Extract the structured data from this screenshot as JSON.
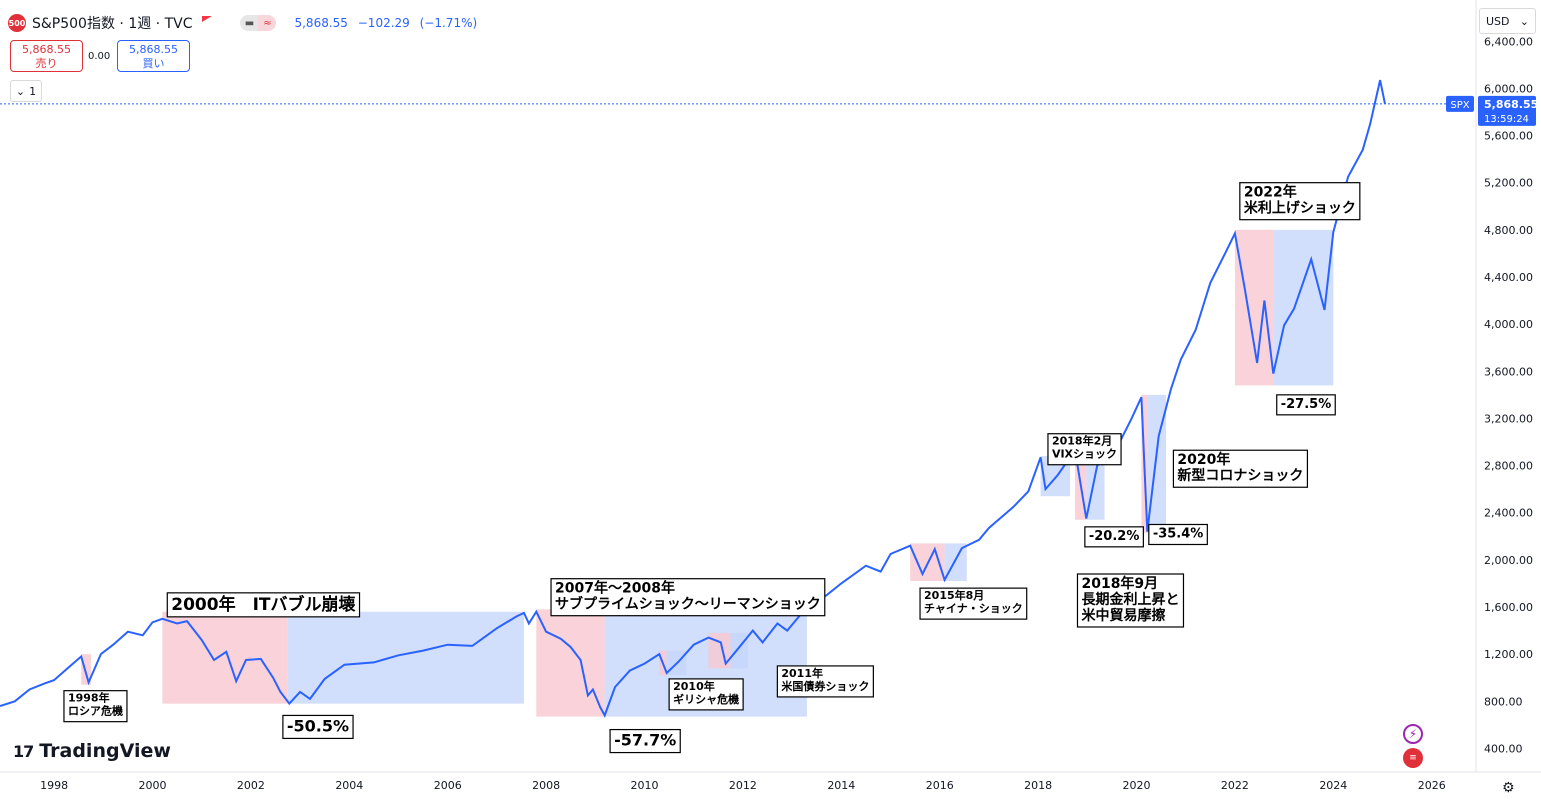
{
  "header": {
    "symbol_badge": "500",
    "title": "S&P500指数 · 1週 · TVC",
    "last": "5,868.55",
    "change": "−102.29",
    "change_pct": "(−1.71%)",
    "pill_left": "▬",
    "pill_right": "≈"
  },
  "trade": {
    "sell_price": "5,868.55",
    "sell_label": "売り",
    "spread": "0.00",
    "buy_price": "5,868.55",
    "buy_label": "買い"
  },
  "collapse": {
    "chevron": "⌄",
    "count": "1"
  },
  "currency": {
    "label": "USD",
    "chevron": "⌄"
  },
  "price_tag": {
    "symbol": "SPX",
    "price": "5,868.55",
    "countdown": "13:59:24"
  },
  "logo": {
    "mark": "17",
    "text": "TradingView"
  },
  "colors": {
    "line": "#2962ff",
    "drawdown": "#f7c8cf",
    "recovery": "#c6d6fb",
    "axis_text": "#131722",
    "tag_bg": "#2962ff"
  },
  "chart_data": {
    "type": "line",
    "title": "",
    "xlabel": "",
    "ylabel": "",
    "x_ticks": [
      1998,
      2000,
      2002,
      2004,
      2006,
      2008,
      2010,
      2012,
      2014,
      2016,
      2018,
      2020,
      2022,
      2024,
      2026
    ],
    "y_ticks": [
      400,
      800,
      1200,
      1600,
      2000,
      2400,
      2800,
      3200,
      3600,
      4000,
      4400,
      4800,
      5200,
      5600,
      6000,
      6400
    ],
    "y_tick_labels": [
      "400.00",
      "800.00",
      "1,200.00",
      "1,600.00",
      "2,000.00",
      "2,400.00",
      "2,800.00",
      "3,200.00",
      "3,600.00",
      "4,000.00",
      "4,400.00",
      "4,800.00",
      "5,200.00",
      "5,600.00",
      "6,000.00",
      "6,400.00"
    ],
    "xlim": [
      1996.9,
      2026.9
    ],
    "ylim": [
      200,
      6750
    ],
    "last_value": 5868.55,
    "series": [
      {
        "points": [
          [
            1996.9,
            760
          ],
          [
            1997.2,
            800
          ],
          [
            1997.5,
            900
          ],
          [
            1997.8,
            950
          ],
          [
            1998.0,
            980
          ],
          [
            1998.3,
            1090
          ],
          [
            1998.55,
            1180
          ],
          [
            1998.7,
            960
          ],
          [
            1998.95,
            1200
          ],
          [
            1999.2,
            1280
          ],
          [
            1999.5,
            1390
          ],
          [
            1999.8,
            1360
          ],
          [
            2000.0,
            1470
          ],
          [
            2000.2,
            1500
          ],
          [
            2000.5,
            1460
          ],
          [
            2000.7,
            1480
          ],
          [
            2001.0,
            1320
          ],
          [
            2001.25,
            1150
          ],
          [
            2001.5,
            1220
          ],
          [
            2001.7,
            970
          ],
          [
            2001.9,
            1150
          ],
          [
            2002.2,
            1160
          ],
          [
            2002.45,
            1000
          ],
          [
            2002.6,
            880
          ],
          [
            2002.78,
            780
          ],
          [
            2003.0,
            880
          ],
          [
            2003.2,
            820
          ],
          [
            2003.5,
            990
          ],
          [
            2003.9,
            1110
          ],
          [
            2004.5,
            1130
          ],
          [
            2005.0,
            1190
          ],
          [
            2005.5,
            1230
          ],
          [
            2006.0,
            1280
          ],
          [
            2006.5,
            1270
          ],
          [
            2007.0,
            1420
          ],
          [
            2007.4,
            1520
          ],
          [
            2007.55,
            1550
          ],
          [
            2007.65,
            1460
          ],
          [
            2007.8,
            1560
          ],
          [
            2008.0,
            1390
          ],
          [
            2008.3,
            1330
          ],
          [
            2008.5,
            1260
          ],
          [
            2008.7,
            1150
          ],
          [
            2008.85,
            850
          ],
          [
            2008.95,
            900
          ],
          [
            2009.1,
            750
          ],
          [
            2009.19,
            680
          ],
          [
            2009.4,
            920
          ],
          [
            2009.7,
            1060
          ],
          [
            2010.0,
            1120
          ],
          [
            2010.3,
            1200
          ],
          [
            2010.45,
            1040
          ],
          [
            2010.7,
            1140
          ],
          [
            2011.0,
            1280
          ],
          [
            2011.3,
            1340
          ],
          [
            2011.55,
            1300
          ],
          [
            2011.65,
            1120
          ],
          [
            2011.85,
            1220
          ],
          [
            2012.2,
            1400
          ],
          [
            2012.4,
            1300
          ],
          [
            2012.7,
            1460
          ],
          [
            2012.9,
            1400
          ],
          [
            2013.3,
            1600
          ],
          [
            2013.7,
            1700
          ],
          [
            2014.0,
            1800
          ],
          [
            2014.5,
            1950
          ],
          [
            2014.8,
            1900
          ],
          [
            2015.0,
            2050
          ],
          [
            2015.4,
            2120
          ],
          [
            2015.65,
            1880
          ],
          [
            2015.9,
            2090
          ],
          [
            2016.1,
            1830
          ],
          [
            2016.45,
            2100
          ],
          [
            2016.8,
            2170
          ],
          [
            2017.0,
            2270
          ],
          [
            2017.5,
            2450
          ],
          [
            2017.8,
            2580
          ],
          [
            2018.05,
            2870
          ],
          [
            2018.15,
            2600
          ],
          [
            2018.4,
            2720
          ],
          [
            2018.75,
            2930
          ],
          [
            2018.98,
            2350
          ],
          [
            2019.2,
            2800
          ],
          [
            2019.6,
            2950
          ],
          [
            2019.9,
            3200
          ],
          [
            2020.1,
            3380
          ],
          [
            2020.22,
            2240
          ],
          [
            2020.45,
            3050
          ],
          [
            2020.7,
            3450
          ],
          [
            2020.9,
            3700
          ],
          [
            2021.2,
            3950
          ],
          [
            2021.5,
            4350
          ],
          [
            2021.8,
            4600
          ],
          [
            2022.0,
            4770
          ],
          [
            2022.2,
            4300
          ],
          [
            2022.45,
            3670
          ],
          [
            2022.6,
            4200
          ],
          [
            2022.78,
            3580
          ],
          [
            2023.0,
            3990
          ],
          [
            2023.2,
            4130
          ],
          [
            2023.55,
            4550
          ],
          [
            2023.82,
            4120
          ],
          [
            2024.0,
            4780
          ],
          [
            2024.3,
            5250
          ],
          [
            2024.6,
            5480
          ],
          [
            2024.75,
            5700
          ],
          [
            2024.95,
            6070
          ],
          [
            2025.05,
            5868.55
          ]
        ]
      }
    ],
    "zones": [
      {
        "kind": "drawdown",
        "x0": 1998.55,
        "x1": 1998.75,
        "y_low": 940,
        "y_high": 1200
      },
      {
        "kind": "drawdown",
        "x0": 2000.2,
        "x1": 2002.75,
        "y_low": 780,
        "y_high": 1560
      },
      {
        "kind": "recovery",
        "x0": 2002.75,
        "x1": 2007.55,
        "y_low": 780,
        "y_high": 1560
      },
      {
        "kind": "drawdown",
        "x0": 2007.8,
        "x1": 2009.19,
        "y_low": 670,
        "y_high": 1580
      },
      {
        "kind": "recovery",
        "x0": 2009.19,
        "x1": 2013.3,
        "y_low": 670,
        "y_high": 1580
      },
      {
        "kind": "drawdown",
        "x0": 2010.3,
        "x1": 2010.45,
        "y_low": 1020,
        "y_high": 1230
      },
      {
        "kind": "recovery",
        "x0": 2010.45,
        "x1": 2010.85,
        "y_low": 1020,
        "y_high": 1230
      },
      {
        "kind": "drawdown",
        "x0": 2011.3,
        "x1": 2011.75,
        "y_low": 1080,
        "y_high": 1380
      },
      {
        "kind": "recovery",
        "x0": 2011.75,
        "x1": 2012.1,
        "y_low": 1080,
        "y_high": 1380
      },
      {
        "kind": "drawdown",
        "x0": 2015.4,
        "x1": 2016.1,
        "y_low": 1820,
        "y_high": 2140
      },
      {
        "kind": "recovery",
        "x0": 2016.1,
        "x1": 2016.55,
        "y_low": 1820,
        "y_high": 2140
      },
      {
        "kind": "recovery",
        "x0": 2018.05,
        "x1": 2018.65,
        "y_low": 2540,
        "y_high": 2880
      },
      {
        "kind": "drawdown",
        "x0": 2018.75,
        "x1": 2018.98,
        "y_low": 2340,
        "y_high": 2940
      },
      {
        "kind": "recovery",
        "x0": 2018.98,
        "x1": 2019.35,
        "y_low": 2340,
        "y_high": 2940
      },
      {
        "kind": "drawdown",
        "x0": 2020.1,
        "x1": 2020.22,
        "y_low": 2230,
        "y_high": 3400
      },
      {
        "kind": "recovery",
        "x0": 2020.22,
        "x1": 2020.6,
        "y_low": 2230,
        "y_high": 3400
      },
      {
        "kind": "drawdown",
        "x0": 2022.0,
        "x1": 2022.78,
        "y_low": 3480,
        "y_high": 4800
      },
      {
        "kind": "recovery",
        "x0": 2022.78,
        "x1": 2024.0,
        "y_low": 3480,
        "y_high": 4800
      }
    ],
    "annotations": [
      {
        "lines": [
          "1998年",
          "ロシア危機"
        ],
        "x": 1998.2,
        "y": 890,
        "size": 11
      },
      {
        "lines": [
          "2000年　ITバブル崩壊"
        ],
        "x": 2000.3,
        "y": 1720,
        "size": 17
      },
      {
        "lines": [
          "-50.5%"
        ],
        "x": 2002.65,
        "y": 680,
        "size": 16
      },
      {
        "lines": [
          "2007年～2008年",
          "サブプライムショック～リーマンショック"
        ],
        "x": 2008.1,
        "y": 1840,
        "size": 14
      },
      {
        "lines": [
          "-57.7%"
        ],
        "x": 2009.3,
        "y": 560,
        "size": 16
      },
      {
        "lines": [
          "2010年",
          "ギリシャ危機"
        ],
        "x": 2010.5,
        "y": 990,
        "size": 11
      },
      {
        "lines": [
          "2011年",
          "米国債券ショック"
        ],
        "x": 2012.7,
        "y": 1100,
        "size": 11
      },
      {
        "lines": [
          "2015年8月",
          "チャイナ・ショック"
        ],
        "x": 2015.6,
        "y": 1760,
        "size": 11
      },
      {
        "lines": [
          "2018年2月",
          "VIXショック"
        ],
        "x": 2018.2,
        "y": 3070,
        "size": 11
      },
      {
        "lines": [
          "-20.2%"
        ],
        "x": 2018.95,
        "y": 2280,
        "size": 13
      },
      {
        "lines": [
          "2018年9月",
          "長期金利上昇と",
          "米中貿易摩擦"
        ],
        "x": 2018.8,
        "y": 1880,
        "size": 14
      },
      {
        "lines": [
          "-35.4%"
        ],
        "x": 2020.25,
        "y": 2300,
        "size": 13
      },
      {
        "lines": [
          "2020年",
          "新型コロナショック"
        ],
        "x": 2020.75,
        "y": 2930,
        "size": 14
      },
      {
        "lines": [
          "2022年",
          "米利上げショック"
        ],
        "x": 2022.1,
        "y": 5200,
        "size": 14
      },
      {
        "lines": [
          "-27.5%"
        ],
        "x": 2022.85,
        "y": 3400,
        "size": 13
      }
    ]
  }
}
